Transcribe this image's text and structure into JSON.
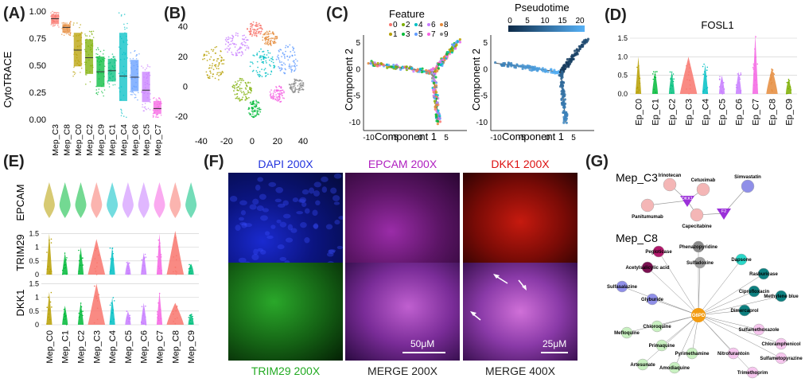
{
  "panels": {
    "A": "(A)",
    "B": "(B)",
    "C": "(C)",
    "D": "(D)",
    "E": "(E)",
    "F": "(F)",
    "G": "(G)"
  },
  "chart_data": [
    {
      "panel": "A",
      "type": "box",
      "ylabel": "CytoTRACE",
      "categories": [
        "Mep_C3",
        "Mep_C8",
        "Mep_C0",
        "Mep_C2",
        "Mep_C9",
        "Mep_C1",
        "Mep_C4",
        "Mep_C6",
        "Mep_C5",
        "Mep_C7"
      ],
      "colors": [
        "#f8766d",
        "#e58b3b",
        "#b79f00",
        "#7cae00",
        "#00ba38",
        "#00bf7d",
        "#00bfc4",
        "#619cff",
        "#c77cff",
        "#f564e3"
      ],
      "median": [
        0.93,
        0.85,
        0.64,
        0.57,
        0.44,
        0.45,
        0.4,
        0.39,
        0.27,
        0.1
      ],
      "q1": [
        0.88,
        0.8,
        0.49,
        0.42,
        0.3,
        0.35,
        0.17,
        0.26,
        0.16,
        0.05
      ],
      "q3": [
        0.97,
        0.88,
        0.8,
        0.74,
        0.58,
        0.56,
        0.8,
        0.55,
        0.44,
        0.17
      ],
      "ylim": [
        0,
        1.0
      ],
      "yticks": [
        "0.00",
        "0.25",
        "0.50",
        "0.75",
        "1.00"
      ]
    },
    {
      "panel": "B",
      "type": "scatter",
      "xticks": [
        "-40",
        "-20",
        "0",
        "20",
        "40"
      ],
      "yticks": [
        "-20",
        "0",
        "20",
        "40"
      ],
      "xlim": [
        -48,
        55
      ],
      "ylim": [
        -30,
        48
      ]
    },
    {
      "panel": "C",
      "type": "line",
      "left": {
        "legend_title": "Feature",
        "legend_items": [
          "0",
          "1",
          "2",
          "3",
          "4",
          "5",
          "6",
          "7",
          "8",
          "9"
        ],
        "xlabel": "Component 1",
        "ylabel": "Component 2",
        "xticks": [
          "-10",
          "-5",
          "0",
          "5"
        ],
        "yticks": [
          "5",
          "0",
          "-5",
          "-10"
        ]
      },
      "right": {
        "legend_title": "Pseudotime",
        "legend_ticks": [
          "0",
          "5",
          "10",
          "15",
          "20"
        ],
        "xlabel": "Component 1",
        "ylabel": "Component 2",
        "xticks": [
          "-10",
          "-5",
          "0",
          "5"
        ],
        "yticks": [
          "5",
          "0",
          "-5",
          "-10"
        ]
      }
    },
    {
      "panel": "D",
      "type": "violin",
      "title": "FOSL1",
      "categories": [
        "Ep_C0",
        "Ep_C1",
        "Ep_C2",
        "Ep_C3",
        "Ep_C4",
        "Ep_C5",
        "Ep_C6",
        "Ep_C7",
        "Ep_C8",
        "Ep_C9"
      ],
      "max": [
        1.0,
        0.6,
        0.6,
        1.0,
        0.8,
        0.5,
        0.6,
        1.6,
        0.7,
        0.4
      ],
      "ylim": [
        0,
        1.5
      ],
      "yticks": [
        "0.0",
        "0.5",
        "1.0",
        "1.5"
      ]
    },
    {
      "panel": "E",
      "type": "violin",
      "categories": [
        "Mep_C0",
        "Mep_C1",
        "Mep_C2",
        "Mep_C3",
        "Mep_C4",
        "Mep_C5",
        "Mep_C6",
        "Mep_C7",
        "Mep_C8",
        "Mep_C9"
      ],
      "rows": [
        {
          "label": "EPCAM",
          "max": [
            1.0,
            1.0,
            1.0,
            1.0,
            1.0,
            1.0,
            1.0,
            1.0,
            1.0,
            1.0
          ]
        },
        {
          "label": "TRIM29",
          "max": [
            1.5,
            0.8,
            1.0,
            1.3,
            1.0,
            0.5,
            0.8,
            1.5,
            1.6,
            0.4
          ],
          "yticks": [
            "0",
            "0.5",
            "1",
            "1.5"
          ]
        },
        {
          "label": "DKK1",
          "max": [
            1.2,
            0.7,
            0.8,
            1.5,
            1.0,
            0.5,
            0.8,
            1.2,
            0.8,
            0.4
          ],
          "yticks": [
            "0",
            "0.5",
            "1",
            "1.5"
          ]
        }
      ]
    }
  ],
  "microscopy": {
    "top_titles": [
      "DAPI  200X",
      "EPCAM 200X",
      "DKK1 200X"
    ],
    "bottom_captions": [
      "TRIM29 200X",
      "MERGE 200X",
      "MERGE 400X"
    ],
    "scale_labels": [
      "50μM",
      "25μM"
    ]
  },
  "network": {
    "group1_title": "Mep_C3",
    "group1_nodes": [
      "Irinotecan",
      "Cetuximab",
      "Panitumumab",
      "Capecitabine",
      "Simvastatin"
    ],
    "group1_targets": [
      "DKK1",
      "F2"
    ],
    "group2_title": "Mep_C8",
    "hub": "G6PD",
    "group2_nodes": [
      "Pegloticase",
      "Phenazopyridine",
      "Acetylsalicylic acid",
      "Sulfadoxine",
      "Dapsone",
      "Rasburicase",
      "Sulfasalazine",
      "Ciprofloxacin",
      "Methylene blue",
      "Glyburide",
      "Dimercaprol",
      "Mefloquine",
      "Chloroquine",
      "Sulfamethoxazole",
      "Primaquine",
      "Pyrimethamine",
      "Nitrofurantoin",
      "Chloramphenicol",
      "Artesunate",
      "Amodiaquine",
      "Sulfametopyrazine",
      "Trimethoprim"
    ]
  }
}
